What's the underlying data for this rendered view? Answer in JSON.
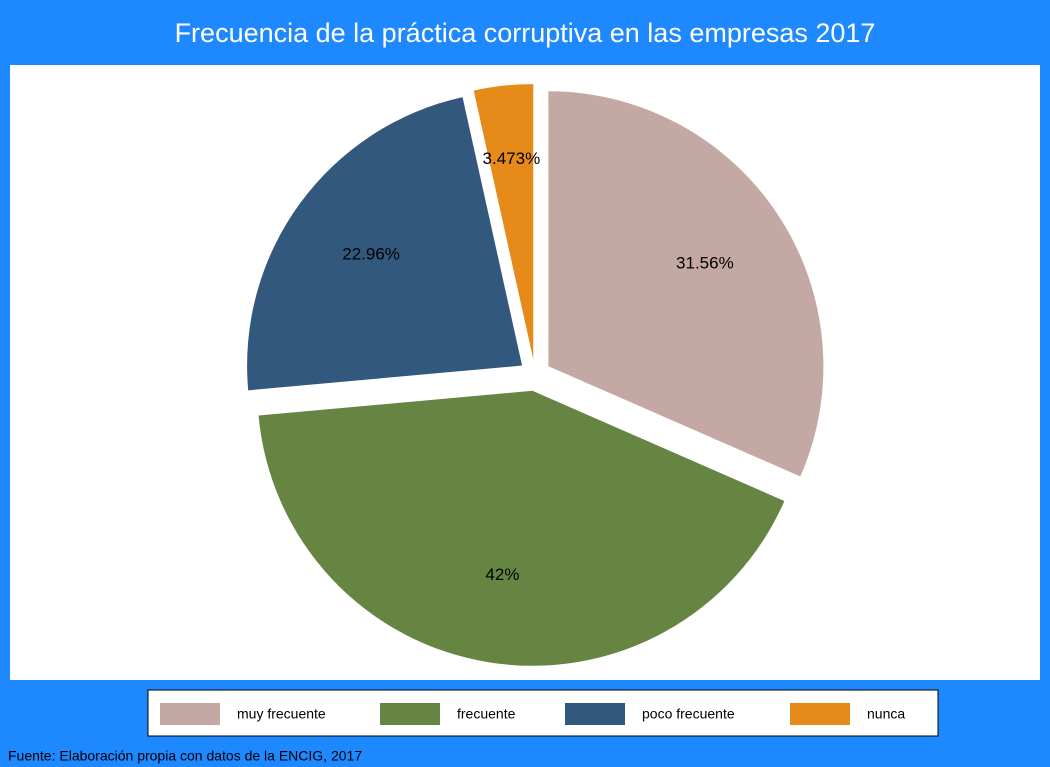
{
  "chart_data": {
    "type": "pie",
    "title": "Frecuencia de la práctica corruptiva en las empresas 2017",
    "categories": [
      "muy frecuente",
      "frecuente",
      "poco frecuente",
      "nunca"
    ],
    "values": [
      31.56,
      42,
      22.96,
      3.473
    ],
    "value_labels": [
      "31.56%",
      "42%",
      "22.96%",
      "3.473%"
    ],
    "colors": [
      "#c4a8a3",
      "#668543",
      "#33587d",
      "#e68a1a"
    ],
    "note": "Fuente: Elaboración propia con datos de la ENCIG, 2017"
  }
}
